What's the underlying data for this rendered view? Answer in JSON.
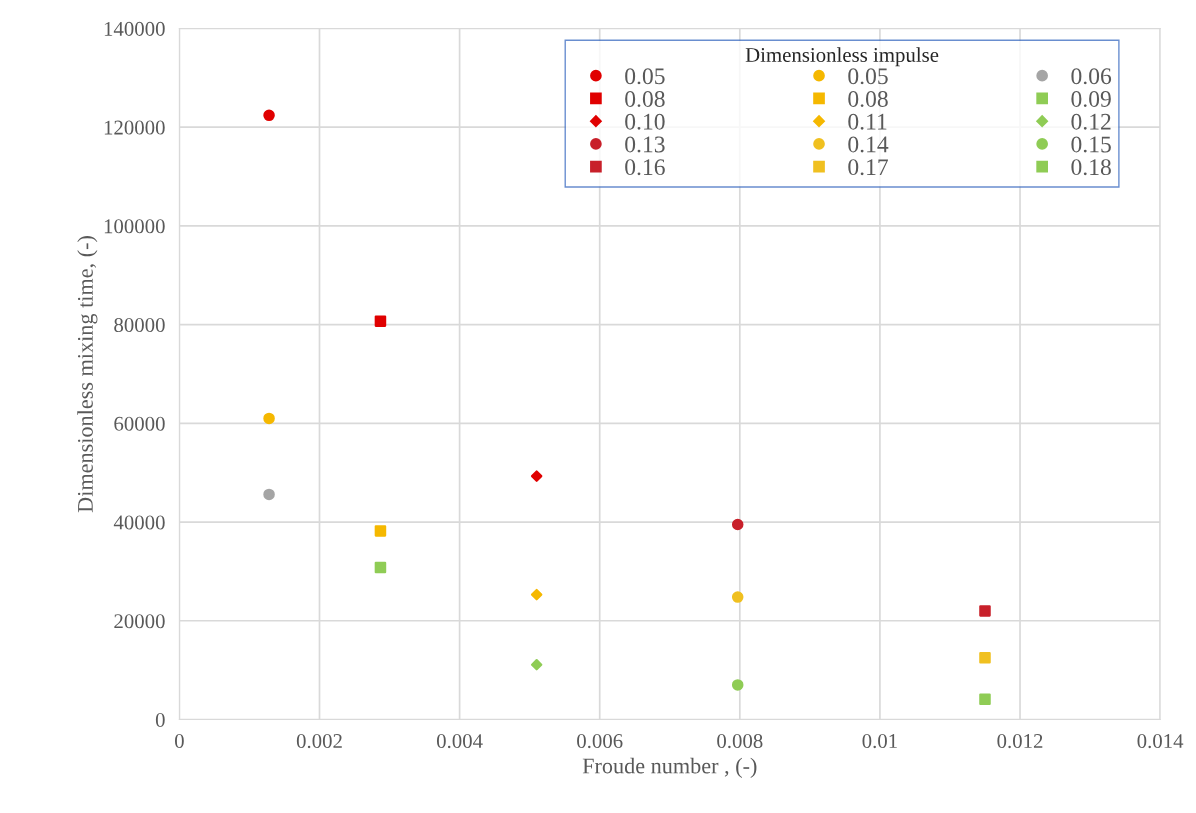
{
  "chart_data": {
    "type": "scatter",
    "xlabel": "Froude number , (-)",
    "ylabel": "Dimensionless mixing time, (-)",
    "legend_title": "Dimensionless impulse",
    "xlim": [
      0,
      0.014
    ],
    "xticks": [
      0,
      0.002,
      0.004,
      0.006,
      0.008,
      0.01,
      0.012,
      0.014
    ],
    "ylim": [
      0,
      140000
    ],
    "yticks": [
      0,
      20000,
      40000,
      60000,
      80000,
      100000,
      120000,
      140000
    ],
    "grid": true,
    "legend": "top right",
    "series": [
      {
        "name": "0.05",
        "color": "#e00000",
        "marker": "circle",
        "x": [
          0.00128
        ],
        "values": [
          122400
        ]
      },
      {
        "name": "0.08",
        "color": "#e00000",
        "marker": "square",
        "x": [
          0.00287
        ],
        "values": [
          80700
        ]
      },
      {
        "name": "0.10",
        "color": "#e00000",
        "marker": "diamond",
        "x": [
          0.0051
        ],
        "values": [
          49300
        ]
      },
      {
        "name": "0.13",
        "color": "#c8202a",
        "marker": "circle",
        "x": [
          0.00797
        ],
        "values": [
          39500
        ]
      },
      {
        "name": "0.16",
        "color": "#c8202a",
        "marker": "square",
        "x": [
          0.0115
        ],
        "values": [
          22000
        ]
      },
      {
        "name": "0.05",
        "color": "#f5b800",
        "marker": "circle",
        "x": [
          0.00128
        ],
        "values": [
          61000
        ]
      },
      {
        "name": "0.08",
        "color": "#f5b800",
        "marker": "square",
        "x": [
          0.00287
        ],
        "values": [
          38200
        ]
      },
      {
        "name": "0.11",
        "color": "#f5b800",
        "marker": "diamond",
        "x": [
          0.0051
        ],
        "values": [
          25300
        ]
      },
      {
        "name": "0.14",
        "color": "#f0c020",
        "marker": "circle",
        "x": [
          0.00797
        ],
        "values": [
          24800
        ]
      },
      {
        "name": "0.17",
        "color": "#f0c020",
        "marker": "square",
        "x": [
          0.0115
        ],
        "values": [
          12500
        ]
      },
      {
        "name": "0.06",
        "color": "#a5a5a5",
        "marker": "circle",
        "x": [
          0.00128
        ],
        "values": [
          45600
        ]
      },
      {
        "name": "0.09",
        "color": "#8fcc55",
        "marker": "square",
        "x": [
          0.00287
        ],
        "values": [
          30800
        ]
      },
      {
        "name": "0.12",
        "color": "#8fcc55",
        "marker": "diamond",
        "x": [
          0.0051
        ],
        "values": [
          11100
        ]
      },
      {
        "name": "0.15",
        "color": "#8fcc55",
        "marker": "circle",
        "x": [
          0.00797
        ],
        "values": [
          7000
        ]
      },
      {
        "name": "0.18",
        "color": "#8fcc55",
        "marker": "square",
        "x": [
          0.0115
        ],
        "values": [
          4100
        ]
      }
    ]
  }
}
